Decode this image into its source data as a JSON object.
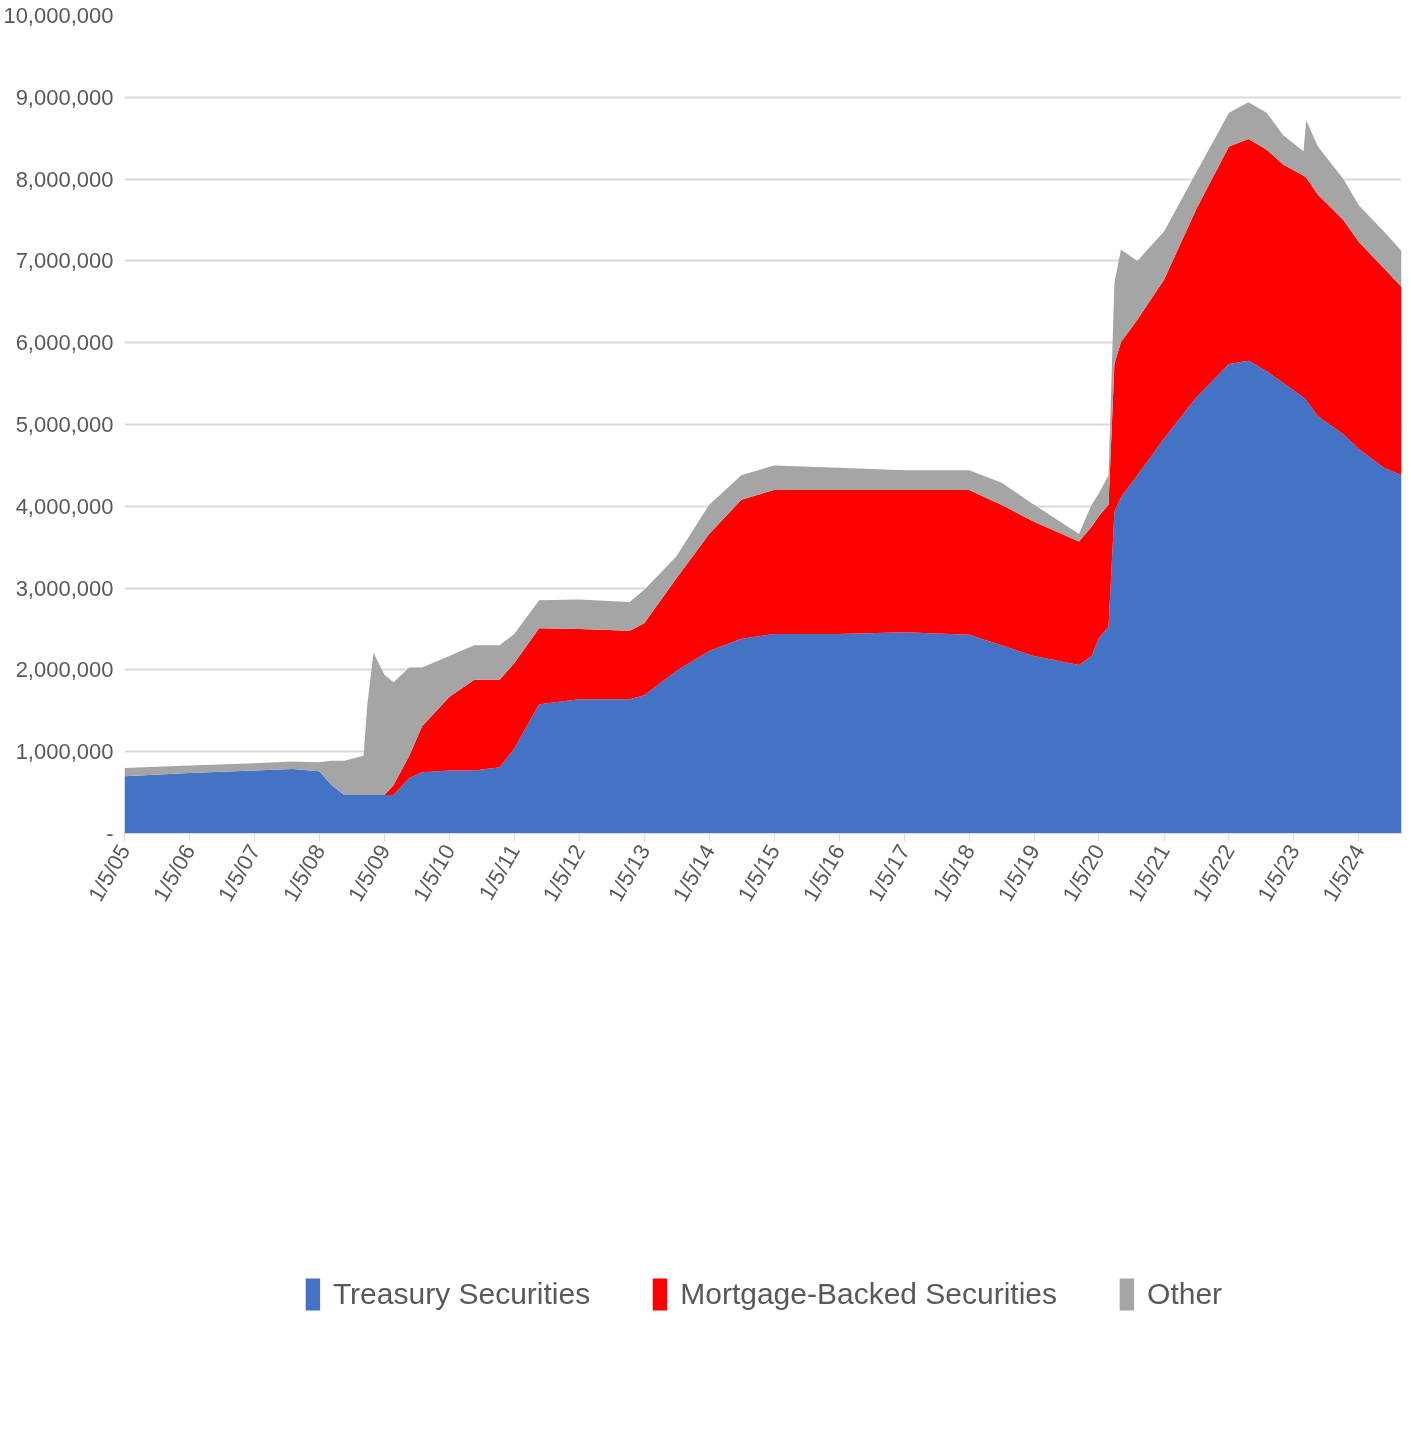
{
  "chart_data": {
    "type": "area",
    "stacked": true,
    "x": [
      "2005-01-05",
      "2006-01-05",
      "2007-01-05",
      "2007-08-08",
      "2008-01-05",
      "2008-03-15",
      "2008-05-25",
      "2008-09-10",
      "2008-10-01",
      "2008-11-05",
      "2009-01-05",
      "2009-02-25",
      "2009-05-25",
      "2009-08-05",
      "2010-01-05",
      "2010-05-25",
      "2010-10-15",
      "2011-01-05",
      "2011-05-25",
      "2012-01-05",
      "2012-10-15",
      "2013-01-05",
      "2013-07-05",
      "2014-01-05",
      "2014-07-05",
      "2015-01-05",
      "2016-01-05",
      "2017-01-05",
      "2018-01-05",
      "2018-07-05",
      "2019-01-05",
      "2019-09-15",
      "2019-11-25",
      "2020-01-05",
      "2020-02-28",
      "2020-04-01",
      "2020-05-08",
      "2020-08-08",
      "2021-01-05",
      "2021-07-05",
      "2022-01-05",
      "2022-04-25",
      "2022-08-05",
      "2022-11-05",
      "2023-02-28",
      "2023-03-15",
      "2023-05-20",
      "2023-10-10",
      "2024-01-05",
      "2024-05-25",
      "2024-09-01"
    ],
    "series": [
      {
        "name": "Treasury Securities",
        "color": "#4472c4",
        "values": [
          700000,
          740000,
          770000,
          790000,
          760000,
          590000,
          470000,
          470000,
          470000,
          470000,
          470000,
          470000,
          680000,
          750000,
          770000,
          770000,
          810000,
          1040000,
          1580000,
          1640000,
          1640000,
          1690000,
          1990000,
          2230000,
          2380000,
          2440000,
          2440000,
          2460000,
          2430000,
          2300000,
          2170000,
          2060000,
          2170000,
          2390000,
          2530000,
          3930000,
          4110000,
          4380000,
          4830000,
          5330000,
          5740000,
          5780000,
          5650000,
          5510000,
          5330000,
          5300000,
          5100000,
          4880000,
          4700000,
          4470000,
          4380000
        ]
      },
      {
        "name": "Mortgage-Backed Securities",
        "color": "#ff0000",
        "values": [
          0,
          0,
          0,
          0,
          0,
          0,
          0,
          0,
          0,
          0,
          0,
          120000,
          270000,
          560000,
          900000,
          1110000,
          1070000,
          1040000,
          930000,
          860000,
          840000,
          880000,
          1130000,
          1430000,
          1700000,
          1760000,
          1760000,
          1740000,
          1770000,
          1720000,
          1640000,
          1510000,
          1580000,
          1490000,
          1490000,
          1810000,
          1900000,
          1900000,
          1940000,
          2300000,
          2660000,
          2710000,
          2710000,
          2670000,
          2710000,
          2720000,
          2710000,
          2620000,
          2530000,
          2440000,
          2300000
        ]
      },
      {
        "name": "Other",
        "color": "#a5a5a5",
        "values": [
          100000,
          90000,
          90000,
          90000,
          110000,
          300000,
          420000,
          480000,
          1110000,
          1740000,
          1470000,
          1260000,
          1080000,
          720000,
          500000,
          420000,
          420000,
          360000,
          340000,
          360000,
          350000,
          410000,
          270000,
          360000,
          300000,
          300000,
          270000,
          240000,
          240000,
          270000,
          210000,
          90000,
          270000,
          280000,
          360000,
          990000,
          1130000,
          720000,
          590000,
          450000,
          410000,
          450000,
          450000,
          360000,
          300000,
          700000,
          590000,
          500000,
          450000,
          450000,
          440000
        ]
      }
    ],
    "xlim": [
      "2005-01-05",
      "2024-09-01"
    ],
    "xticks": [
      {
        "value": "2005-01-05",
        "label": "1/5/05"
      },
      {
        "value": "2006-01-05",
        "label": "1/5/06"
      },
      {
        "value": "2007-01-05",
        "label": "1/5/07"
      },
      {
        "value": "2008-01-05",
        "label": "1/5/08"
      },
      {
        "value": "2009-01-05",
        "label": "1/5/09"
      },
      {
        "value": "2010-01-05",
        "label": "1/5/10"
      },
      {
        "value": "2011-01-05",
        "label": "1/5/11"
      },
      {
        "value": "2012-01-05",
        "label": "1/5/12"
      },
      {
        "value": "2013-01-05",
        "label": "1/5/13"
      },
      {
        "value": "2014-01-05",
        "label": "1/5/14"
      },
      {
        "value": "2015-01-05",
        "label": "1/5/15"
      },
      {
        "value": "2016-01-05",
        "label": "1/5/16"
      },
      {
        "value": "2017-01-05",
        "label": "1/5/17"
      },
      {
        "value": "2018-01-05",
        "label": "1/5/18"
      },
      {
        "value": "2019-01-05",
        "label": "1/5/19"
      },
      {
        "value": "2020-01-05",
        "label": "1/5/20"
      },
      {
        "value": "2021-01-05",
        "label": "1/5/21"
      },
      {
        "value": "2022-01-05",
        "label": "1/5/22"
      },
      {
        "value": "2023-01-05",
        "label": "1/5/23"
      },
      {
        "value": "2024-01-05",
        "label": "1/5/24"
      }
    ],
    "ylim": [
      0,
      10000000
    ],
    "yticks": [
      {
        "value": 0,
        "label": "-"
      },
      {
        "value": 1000000,
        "label": "1,000,000"
      },
      {
        "value": 2000000,
        "label": "2,000,000"
      },
      {
        "value": 3000000,
        "label": "3,000,000"
      },
      {
        "value": 4000000,
        "label": "4,000,000"
      },
      {
        "value": 5000000,
        "label": "5,000,000"
      },
      {
        "value": 6000000,
        "label": "6,000,000"
      },
      {
        "value": 7000000,
        "label": "7,000,000"
      },
      {
        "value": 8000000,
        "label": "8,000,000"
      },
      {
        "value": 9000000,
        "label": "9,000,000"
      },
      {
        "value": 10000000,
        "label": "10,000,000"
      }
    ],
    "grid": "y",
    "legend": "bottom"
  }
}
